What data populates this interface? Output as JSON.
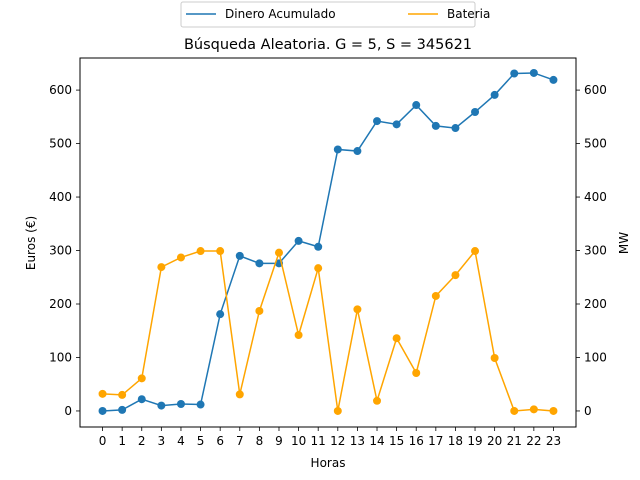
{
  "chart_data": {
    "type": "line",
    "title": "Búsqueda Aleatoria. G = 5, S = 345621",
    "xlabel": "Horas",
    "ylabel": "Euros (€)",
    "y2label": "MW",
    "x": [
      0,
      1,
      2,
      3,
      4,
      5,
      6,
      7,
      8,
      9,
      10,
      11,
      12,
      13,
      14,
      15,
      16,
      17,
      18,
      19,
      20,
      21,
      22,
      23
    ],
    "ylim": [
      -30,
      660
    ],
    "y2lim": [
      -30,
      660
    ],
    "yticks": [
      0,
      100,
      200,
      300,
      400,
      500,
      600
    ],
    "y2ticks": [
      0,
      100,
      200,
      300,
      400,
      500,
      600
    ],
    "grid": false,
    "legend_position": "top-center",
    "series": [
      {
        "name": "Dinero Acumulado",
        "axis": "left",
        "color": "#1f77b4",
        "marker": "circle",
        "values": [
          0,
          2,
          22,
          10,
          13,
          12,
          181,
          290,
          276,
          276,
          318,
          307,
          489,
          486,
          542,
          536,
          572,
          533,
          529,
          559,
          591,
          631,
          632,
          619
        ]
      },
      {
        "name": "Bateria",
        "axis": "right",
        "color": "#ffa500",
        "marker": "circle",
        "values": [
          32,
          30,
          61,
          269,
          287,
          299,
          299,
          31,
          187,
          296,
          142,
          267,
          0,
          190,
          19,
          136,
          71,
          215,
          254,
          299,
          99,
          0,
          3,
          0
        ]
      }
    ]
  }
}
